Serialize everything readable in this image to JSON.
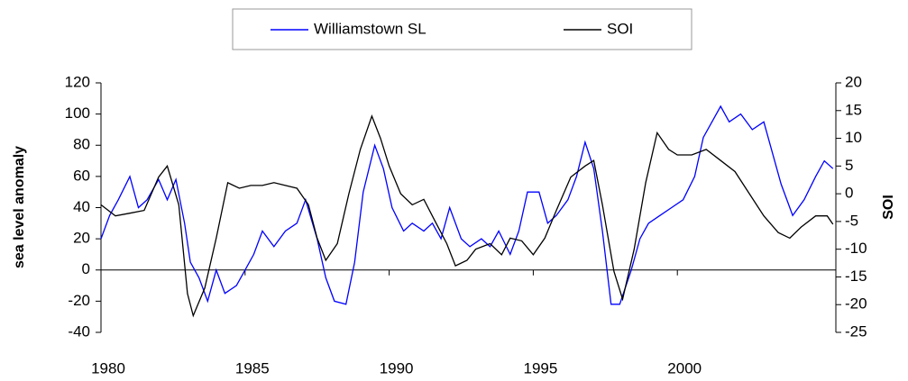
{
  "chart_data": {
    "type": "line",
    "y_label": "sea level anomaly",
    "y2_label": "SOI",
    "xlim": [
      1980,
      2005.5
    ],
    "xticks": [
      1980,
      1985,
      1990,
      1995,
      2000
    ],
    "ylim": [
      -40,
      120
    ],
    "yticks": [
      -40,
      -20,
      0,
      20,
      40,
      60,
      80,
      100,
      120
    ],
    "y2lim": [
      -25,
      20
    ],
    "y2ticks": [
      -25,
      -20,
      -15,
      -10,
      -5,
      0,
      5,
      10,
      15,
      20
    ],
    "series": [
      {
        "name": "Williamstown SL",
        "color": "#0000ff",
        "axis": "y",
        "x": [
          1980.0,
          1980.3,
          1980.6,
          1981.0,
          1981.3,
          1981.6,
          1982.0,
          1982.3,
          1982.6,
          1982.9,
          1983.1,
          1983.4,
          1983.7,
          1984.0,
          1984.3,
          1984.7,
          1985.0,
          1985.3,
          1985.6,
          1986.0,
          1986.4,
          1986.8,
          1987.1,
          1987.5,
          1987.8,
          1988.1,
          1988.5,
          1988.8,
          1989.1,
          1989.5,
          1989.8,
          1990.1,
          1990.5,
          1990.8,
          1991.2,
          1991.5,
          1991.8,
          1992.1,
          1992.5,
          1992.8,
          1993.2,
          1993.5,
          1993.8,
          1994.2,
          1994.5,
          1994.8,
          1995.2,
          1995.5,
          1995.8,
          1996.2,
          1996.5,
          1996.8,
          1997.1,
          1997.4,
          1997.7,
          1998.0,
          1998.4,
          1998.7,
          1999.0,
          1999.4,
          1999.8,
          2000.2,
          2000.6,
          2000.9,
          2001.2,
          2001.5,
          2001.8,
          2002.2,
          2002.6,
          2003.0,
          2003.3,
          2003.6,
          2004.0,
          2004.4,
          2004.8,
          2005.1,
          2005.4
        ],
        "values": [
          20,
          35,
          45,
          60,
          40,
          45,
          58,
          45,
          58,
          30,
          5,
          -5,
          -20,
          0,
          -15,
          -10,
          0,
          10,
          25,
          15,
          25,
          30,
          45,
          20,
          -5,
          -20,
          -22,
          5,
          50,
          80,
          65,
          40,
          25,
          30,
          25,
          30,
          20,
          40,
          20,
          15,
          20,
          15,
          25,
          10,
          25,
          50,
          50,
          30,
          35,
          45,
          60,
          82,
          65,
          25,
          -22,
          -22,
          0,
          20,
          30,
          35,
          40,
          45,
          60,
          85,
          95,
          105,
          95,
          100,
          90,
          95,
          75,
          55,
          35,
          45,
          60,
          70,
          65
        ]
      },
      {
        "name": "SOI",
        "color": "#000000",
        "axis": "y2",
        "x": [
          1980.0,
          1980.5,
          1981.0,
          1981.5,
          1982.0,
          1982.3,
          1982.7,
          1983.0,
          1983.2,
          1983.6,
          1984.0,
          1984.4,
          1984.8,
          1985.2,
          1985.6,
          1986.0,
          1986.4,
          1986.8,
          1987.2,
          1987.5,
          1987.8,
          1988.2,
          1988.6,
          1989.0,
          1989.4,
          1989.7,
          1990.0,
          1990.4,
          1990.8,
          1991.2,
          1991.6,
          1992.0,
          1992.3,
          1992.7,
          1993.0,
          1993.5,
          1993.9,
          1994.2,
          1994.6,
          1995.0,
          1995.4,
          1995.8,
          1996.3,
          1996.8,
          1997.1,
          1997.4,
          1997.8,
          1998.1,
          1998.5,
          1998.9,
          1999.3,
          1999.7,
          2000.0,
          2000.5,
          2001.0,
          2001.5,
          2002.0,
          2002.5,
          2003.0,
          2003.5,
          2003.9,
          2004.3,
          2004.8,
          2005.2,
          2005.4
        ],
        "values": [
          -2,
          -4,
          -3.5,
          -3,
          3,
          5,
          -2,
          -18,
          -22,
          -17,
          -8,
          2,
          1,
          1.5,
          1.5,
          2,
          1.5,
          1,
          -2,
          -8,
          -12,
          -9,
          0,
          8,
          14,
          10,
          5,
          0,
          -2,
          -1,
          -5,
          -9,
          -13,
          -12,
          -10,
          -9,
          -11,
          -8,
          -8.5,
          -11,
          -8,
          -3,
          3,
          5,
          6,
          -2,
          -14,
          -19,
          -10,
          2,
          11,
          8,
          7,
          7,
          8,
          6,
          4,
          0,
          -4,
          -7,
          -8,
          -6,
          -4,
          -4,
          -5.5
        ]
      }
    ]
  }
}
